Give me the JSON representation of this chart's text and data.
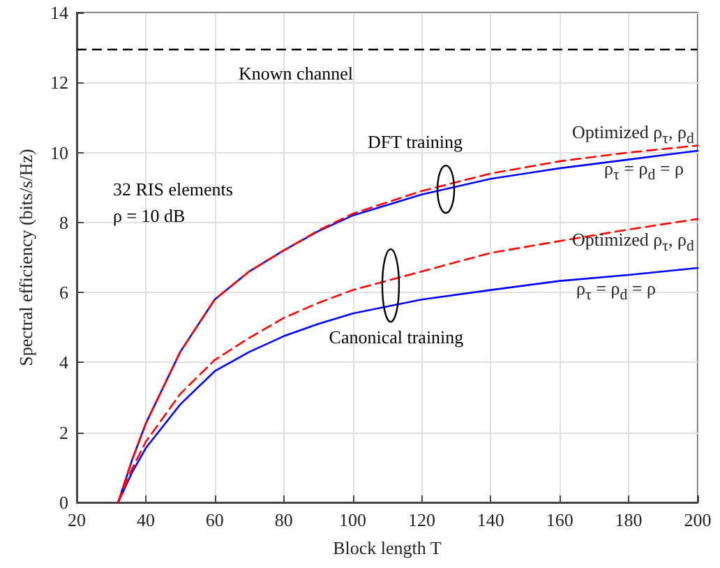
{
  "chart_data": {
    "type": "line",
    "xlabel": "Block length T",
    "ylabel": "Spectral efficiency (bits/s/Hz)",
    "xlim": [
      20,
      200
    ],
    "xticks": [
      20,
      40,
      60,
      80,
      100,
      120,
      140,
      160,
      180,
      200
    ],
    "ylim": [
      0,
      14
    ],
    "yticks": [
      0,
      2,
      4,
      6,
      8,
      10,
      12,
      14
    ],
    "grid": true,
    "legend": false,
    "marker": "none",
    "ref_lines": [
      {
        "axis": "y",
        "value": 12.95,
        "label": "Known channel",
        "color": "#000000",
        "line_style": "dashed"
      }
    ],
    "annotations": [
      {
        "text": "DFT training",
        "x": 127,
        "y": 8.95
      },
      {
        "text": "Canonical training",
        "x": 111,
        "y": 6.2
      },
      "32 RIS elements",
      "ρ = 10 dB"
    ],
    "series": [
      {
        "name": "ρ$_{τ}$ = ρ$_{d}$ = ρ",
        "color": "#0000ff",
        "line_style": "solid",
        "x": [
          32,
          36,
          40,
          50,
          60,
          70,
          80,
          90,
          100,
          120,
          140,
          160,
          180,
          200
        ],
        "values": [
          0,
          1.2,
          2.25,
          4.3,
          5.8,
          6.6,
          7.2,
          7.75,
          8.2,
          8.8,
          9.25,
          9.55,
          9.8,
          10.05
        ]
      },
      {
        "name": "Optimized ρ$_{τ}$, ρ$_{d}$",
        "color": "#ff0000",
        "line_style": "dashed",
        "x": [
          32,
          36,
          40,
          50,
          60,
          70,
          80,
          90,
          100,
          120,
          140,
          160,
          180,
          200
        ],
        "values": [
          0,
          1.2,
          2.25,
          4.3,
          5.8,
          6.6,
          7.2,
          7.77,
          8.25,
          8.9,
          9.4,
          9.75,
          10.0,
          10.2
        ]
      },
      {
        "name": "ρ$_{τ}$ = ρ$_{d}$ = ρ",
        "color": "#0000ff",
        "line_style": "solid",
        "x": [
          32,
          36,
          40,
          50,
          60,
          70,
          80,
          90,
          100,
          120,
          140,
          160,
          180,
          200
        ],
        "values": [
          0,
          0.85,
          1.55,
          2.8,
          3.75,
          4.3,
          4.75,
          5.1,
          5.4,
          5.8,
          6.07,
          6.33,
          6.5,
          6.7
        ]
      },
      {
        "name": "Optimized ρ$_{τ}$, ρ$_{d}$",
        "color": "#ff0000",
        "line_style": "dashed",
        "x": [
          32,
          36,
          40,
          50,
          60,
          70,
          80,
          90,
          100,
          120,
          140,
          160,
          180,
          200
        ],
        "values": [
          0,
          0.95,
          1.73,
          3.1,
          4.07,
          4.7,
          5.27,
          5.7,
          6.07,
          6.6,
          7.13,
          7.47,
          7.8,
          8.1
        ]
      }
    ]
  }
}
